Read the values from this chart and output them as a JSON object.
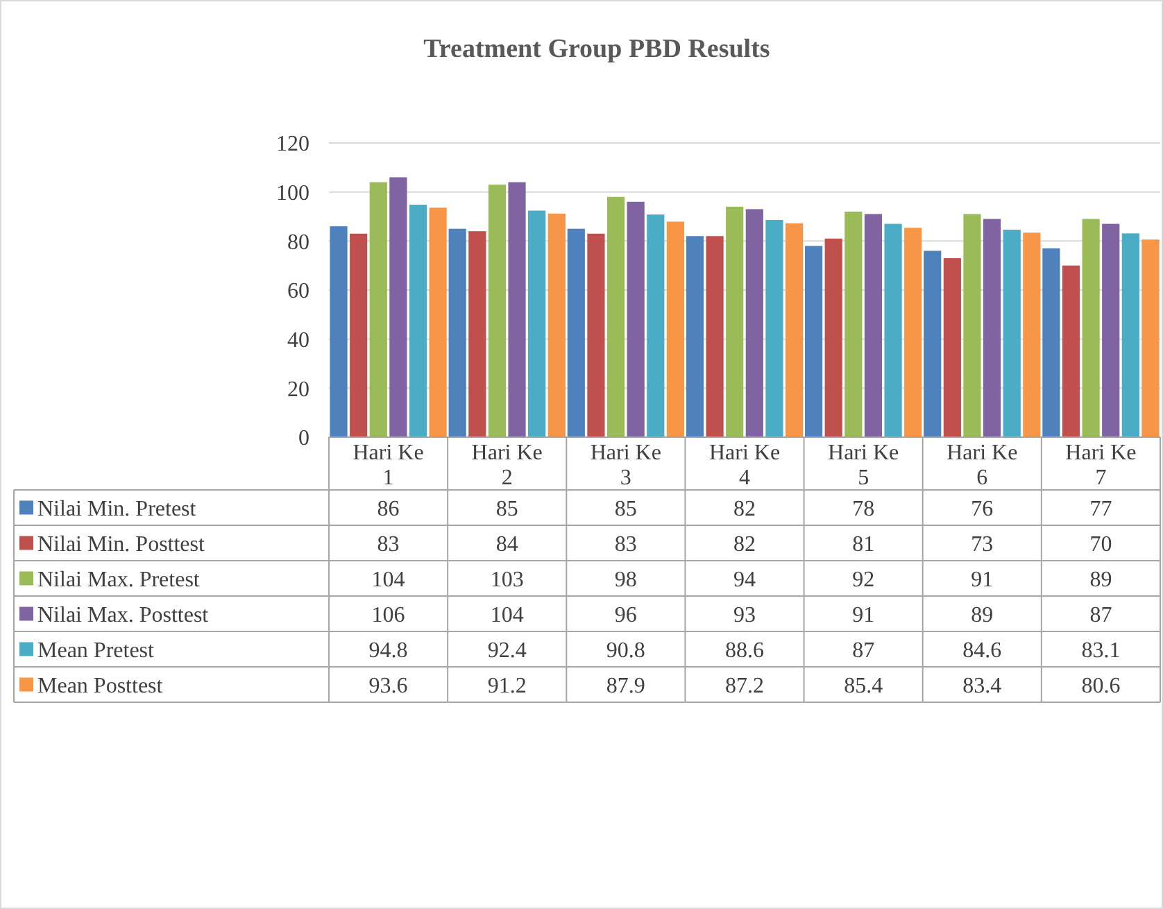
{
  "chart_data": {
    "type": "bar",
    "title": "Treatment Group PBD Results",
    "categories": [
      "Hari Ke 1",
      "Hari Ke 2",
      "Hari Ke 3",
      "Hari Ke 4",
      "Hari Ke 5",
      "Hari Ke 6",
      "Hari Ke 7"
    ],
    "series": [
      {
        "name": "Nilai Min. Pretest",
        "color": "#4f81bd",
        "values": [
          86,
          85,
          85,
          82,
          78,
          76,
          77
        ]
      },
      {
        "name": "Nilai Min. Posttest",
        "color": "#c0504d",
        "values": [
          83,
          84,
          83,
          82,
          81,
          73,
          70
        ]
      },
      {
        "name": "Nilai Max. Pretest",
        "color": "#9bbb59",
        "values": [
          104,
          103,
          98,
          94,
          92,
          91,
          89
        ]
      },
      {
        "name": "Nilai Max. Posttest",
        "color": "#8064a2",
        "values": [
          106,
          104,
          96,
          93,
          91,
          89,
          87
        ]
      },
      {
        "name": "Mean Pretest",
        "color": "#4bacc6",
        "values": [
          94.8,
          92.4,
          90.8,
          88.6,
          87,
          84.6,
          83.1
        ]
      },
      {
        "name": "Mean Posttest",
        "color": "#f79646",
        "values": [
          93.6,
          91.2,
          87.9,
          87.2,
          85.4,
          83.4,
          80.6
        ]
      }
    ],
    "ylim": [
      0,
      120
    ],
    "yticks": [
      0,
      20,
      40,
      60,
      80,
      100,
      120
    ],
    "grid": "y",
    "legend": "bottom",
    "data_labels": true
  }
}
